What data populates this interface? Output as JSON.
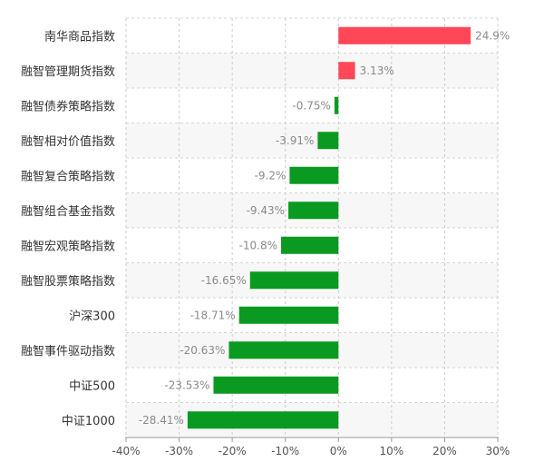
{
  "chart_data": {
    "type": "bar",
    "orientation": "horizontal",
    "categories": [
      "南华商品指数",
      "融智管理期货指数",
      "融智债券策略指数",
      "融智相对价值指数",
      "融智复合策略指数",
      "融智组合基金指数",
      "融智宏观策略指数",
      "融智股票策略指数",
      "沪深300",
      "融智事件驱动指数",
      "中证500",
      "中证1000"
    ],
    "values": [
      24.9,
      3.13,
      -0.75,
      -3.91,
      -9.2,
      -9.43,
      -10.8,
      -16.65,
      -18.71,
      -20.63,
      -23.53,
      -28.41
    ],
    "value_labels": [
      "24.9%",
      "3.13%",
      "-0.75%",
      "-3.91%",
      "-9.2%",
      "-9.43%",
      "-10.8%",
      "-16.65%",
      "-18.71%",
      "-20.63%",
      "-23.53%",
      "-28.41%"
    ],
    "x_ticks": [
      -40,
      -30,
      -20,
      -10,
      0,
      10,
      20,
      30
    ],
    "x_tick_labels": [
      "-40%",
      "-30%",
      "-20%",
      "-10%",
      "0%",
      "10%",
      "20%",
      "30%"
    ],
    "xlim": [
      -40,
      30
    ],
    "grid": true,
    "legend": "none",
    "colors": {
      "positive": "#ff4757",
      "negative": "#0a9a21"
    }
  }
}
